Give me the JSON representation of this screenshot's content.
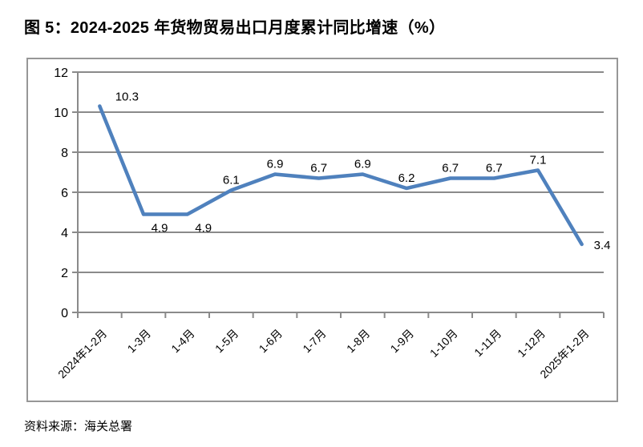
{
  "page": {
    "title": "图 5：2024-2025 年货物贸易出口月度累计同比增速（%）",
    "source_label": "资料来源：海关总署"
  },
  "chart_data": {
    "type": "line",
    "title": "2024-2025 年货物贸易出口月度累计同比增速（%）",
    "categories": [
      "2024年1-2月",
      "1-3月",
      "1-4月",
      "1-5月",
      "1-6月",
      "1-7月",
      "1-8月",
      "1-9月",
      "1-10月",
      "1-11月",
      "1-12月",
      "2025年1-2月"
    ],
    "values": [
      10.3,
      4.9,
      4.9,
      6.1,
      6.9,
      6.7,
      6.9,
      6.2,
      6.7,
      6.7,
      7.1,
      3.4
    ],
    "data_labels": [
      "10.3",
      "4.9",
      "4.9",
      "6.1",
      "6.9",
      "6.7",
      "6.9",
      "6.2",
      "6.7",
      "6.7",
      "7.1",
      "3.4"
    ],
    "label_positions": [
      "above-right",
      "below",
      "below",
      "above",
      "above",
      "above",
      "above",
      "above",
      "above",
      "above",
      "above",
      "right"
    ],
    "xlabel": "",
    "ylabel": "",
    "ylim": [
      0,
      12
    ],
    "yticks": [
      0,
      2,
      4,
      6,
      8,
      10,
      12
    ],
    "x_label_rotation_deg": -45,
    "grid": "horizontal",
    "legend": "none",
    "line_color": "#4F81BD",
    "axis_color": "#8a8a8a",
    "frame_color": "#979797"
  }
}
